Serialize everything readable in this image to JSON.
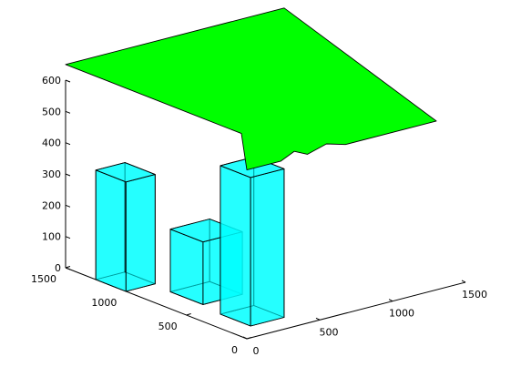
{
  "chart_data": {
    "type": "3d-surface-boxes",
    "axes": {
      "x": {
        "lim": [
          0,
          1500
        ],
        "ticks": [
          0,
          500,
          1000,
          1500
        ]
      },
      "y": {
        "lim": [
          0,
          1500
        ],
        "ticks": [
          0,
          500,
          1000,
          1500
        ]
      },
      "z": {
        "lim": [
          0,
          600
        ],
        "ticks": [
          0,
          100,
          200,
          300,
          400,
          500,
          600
        ]
      }
    },
    "tick_labels": {
      "x": [
        "0",
        "500",
        "1000",
        "1500"
      ],
      "y": [
        "0",
        "500",
        "1000",
        "1500"
      ],
      "z": [
        "0",
        "100",
        "200",
        "300",
        "400",
        "500",
        "600"
      ]
    },
    "grid": false,
    "boxes": [
      {
        "name": "box-left-tall",
        "x": [
          0,
          200
        ],
        "y": [
          1000,
          1250
        ],
        "z": [
          0,
          350
        ]
      },
      {
        "name": "box-middle-short",
        "x": [
          180,
          450
        ],
        "y": [
          580,
          850
        ],
        "z": [
          0,
          200
        ]
      },
      {
        "name": "box-right-tallest",
        "x": [
          150,
          380
        ],
        "y": [
          150,
          400
        ],
        "z": [
          0,
          475
        ]
      }
    ],
    "plate": {
      "name": "roof-surface",
      "polygon": [
        [
          0,
          1500,
          650
        ],
        [
          0,
          0,
          540
        ],
        [
          1300,
          0,
          540
        ],
        [
          1500,
          1500,
          650
        ]
      ]
    },
    "colors": {
      "box_fill": "#00ffff",
      "box_fill_opacity": 0.62,
      "plate_fill": "#00ff00",
      "edge": "#000000"
    }
  }
}
